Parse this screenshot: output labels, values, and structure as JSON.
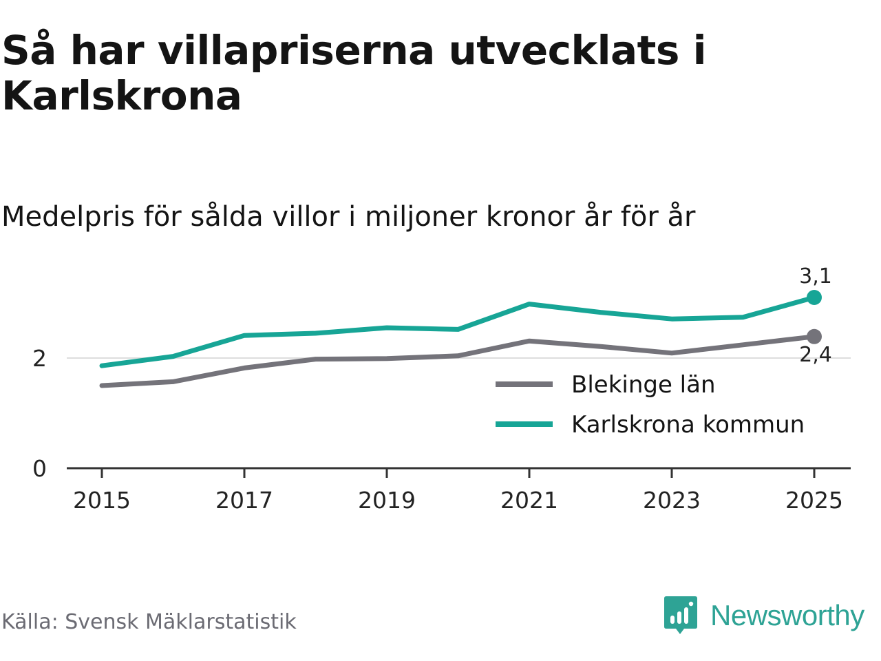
{
  "title": "Så har villapriserna utvecklats i Karlskrona",
  "subtitle": "Medelpris för sålda villor i miljoner kronor år för år",
  "source": "Källa: Svensk Mäklarstatistik",
  "brand": {
    "name": "Newsworthy",
    "icon": "newsworthy-logo-icon",
    "color": "#2ea395"
  },
  "chart_data": {
    "type": "line",
    "title": "Så har villapriserna utvecklats i Karlskrona",
    "subtitle": "Medelpris för sålda villor i miljoner kronor år för år",
    "xlabel": "",
    "ylabel": "",
    "x": [
      2015,
      2016,
      2017,
      2018,
      2019,
      2020,
      2021,
      2022,
      2023,
      2024,
      2025
    ],
    "xticks": [
      "2015",
      "2017",
      "2019",
      "2021",
      "2023",
      "2025"
    ],
    "yticks": [
      {
        "value": 0,
        "label": "0"
      },
      {
        "value": 2,
        "label": "2"
      }
    ],
    "ylim": [
      0,
      3.6
    ],
    "grid": true,
    "legend_position": "bottom-right",
    "series": [
      {
        "name": "Blekinge län",
        "color": "#74737a",
        "values": [
          1.5,
          1.57,
          1.82,
          1.98,
          1.99,
          2.04,
          2.31,
          2.21,
          2.09,
          2.24,
          2.39
        ],
        "end_label": "2,4"
      },
      {
        "name": "Karlskrona kommun",
        "color": "#17a596",
        "values": [
          1.86,
          2.03,
          2.41,
          2.45,
          2.55,
          2.52,
          2.98,
          2.83,
          2.71,
          2.74,
          3.1
        ],
        "end_label": "3,1"
      }
    ]
  }
}
